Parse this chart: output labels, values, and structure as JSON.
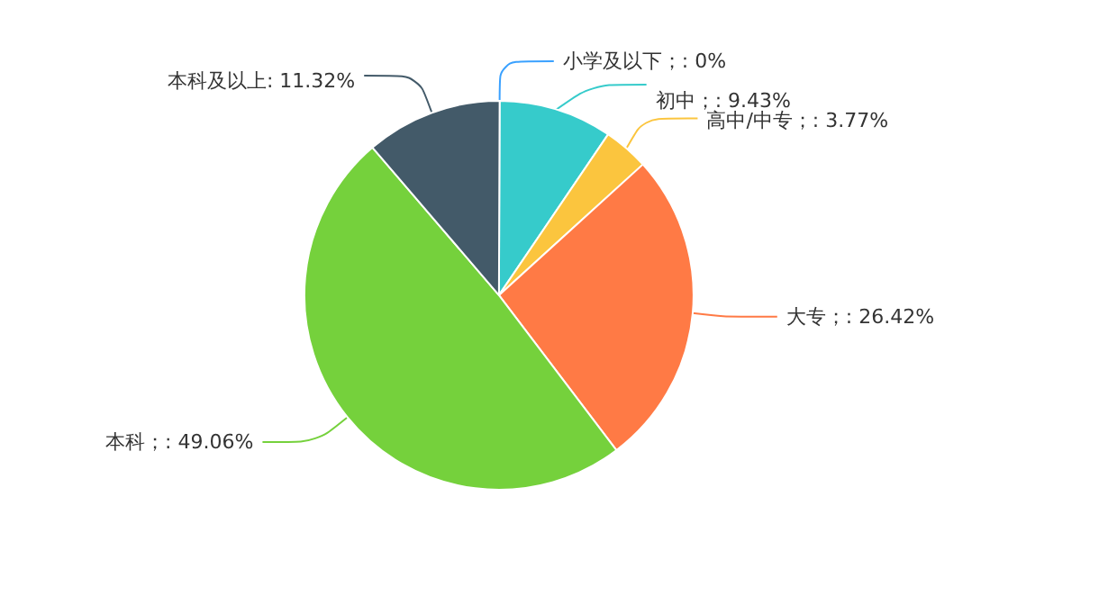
{
  "chart_data": {
    "type": "pie",
    "categories": [
      "小学及以下",
      "初中",
      "高中/中专",
      "大专",
      "本科",
      "本科及以上"
    ],
    "values": [
      0,
      9.43,
      3.77,
      26.42,
      49.06,
      11.32
    ],
    "value_labels": [
      "；: 0%",
      "；: 9.43%",
      "；: 3.77%",
      "；: 26.42%",
      "；: 49.06%",
      ": 11.32%"
    ],
    "colors": [
      "#3aa1ff",
      "#36cbcb",
      "#fbc53e",
      "#ff7a45",
      "#75d13c",
      "#435a69"
    ],
    "legend": false
  }
}
